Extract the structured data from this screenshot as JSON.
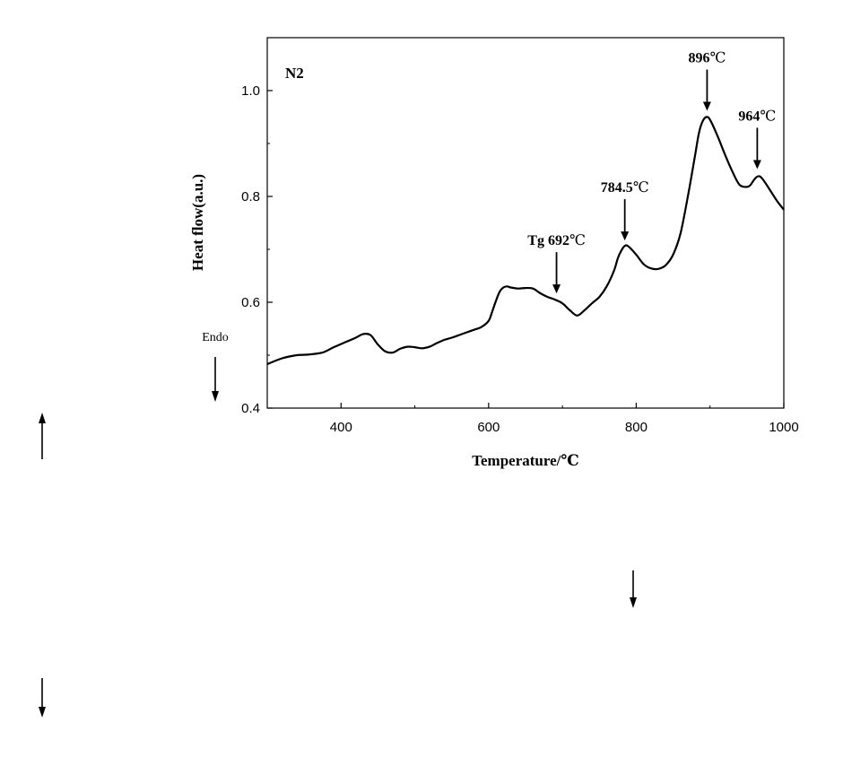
{
  "chart_data": {
    "type": "line",
    "panel_label": "N2",
    "xlabel": "Temperature/℃",
    "ylabel": "Heat flow(a.u.)",
    "xlim": [
      300,
      1000
    ],
    "ylim": [
      0.4,
      1.1
    ],
    "xticks": [
      {
        "value": 400,
        "label": "400"
      },
      {
        "value": 600,
        "label": "600"
      },
      {
        "value": 800,
        "label": "800"
      },
      {
        "value": 1000,
        "label": "1000"
      }
    ],
    "yticks": [
      {
        "value": 0.4,
        "label": "0.4"
      },
      {
        "value": 0.6,
        "label": "0.6"
      },
      {
        "value": 0.8,
        "label": "0.8"
      },
      {
        "value": 1.0,
        "label": "1.0"
      }
    ],
    "grid": false,
    "endo_label": "Endo",
    "series": [
      {
        "color": "#000000",
        "x": [
          300,
          320,
          340,
          355,
          375,
          390,
          405,
          420,
          430,
          440,
          450,
          460,
          470,
          480,
          490,
          500,
          510,
          520,
          530,
          540,
          550,
          560,
          570,
          580,
          590,
          600,
          605,
          610,
          615,
          620,
          625,
          630,
          640,
          650,
          660,
          670,
          680,
          690,
          700,
          710,
          720,
          730,
          740,
          750,
          760,
          770,
          775,
          780,
          785,
          790,
          800,
          810,
          820,
          830,
          840,
          850,
          860,
          870,
          880,
          885,
          890,
          895,
          900,
          910,
          920,
          930,
          940,
          950,
          955,
          960,
          965,
          970,
          980,
          990,
          1000
        ],
        "y": [
          0.483,
          0.494,
          0.5,
          0.501,
          0.505,
          0.515,
          0.524,
          0.533,
          0.54,
          0.538,
          0.52,
          0.507,
          0.505,
          0.512,
          0.516,
          0.515,
          0.513,
          0.516,
          0.523,
          0.529,
          0.533,
          0.538,
          0.543,
          0.548,
          0.553,
          0.565,
          0.583,
          0.603,
          0.62,
          0.628,
          0.63,
          0.628,
          0.626,
          0.627,
          0.626,
          0.617,
          0.61,
          0.605,
          0.598,
          0.585,
          0.575,
          0.585,
          0.598,
          0.61,
          0.63,
          0.66,
          0.683,
          0.698,
          0.707,
          0.705,
          0.69,
          0.672,
          0.664,
          0.663,
          0.67,
          0.69,
          0.73,
          0.8,
          0.88,
          0.92,
          0.942,
          0.95,
          0.945,
          0.915,
          0.88,
          0.848,
          0.822,
          0.818,
          0.822,
          0.832,
          0.838,
          0.835,
          0.815,
          0.793,
          0.775
        ]
      }
    ],
    "annotations": [
      {
        "x": 692,
        "y": 0.61,
        "bold": "Tg 692",
        "unit": "℃"
      },
      {
        "x": 784.5,
        "y": 0.71,
        "bold": "784.5",
        "unit": "℃"
      },
      {
        "x": 896,
        "y": 0.955,
        "bold": "896",
        "unit": "℃"
      },
      {
        "x": 964,
        "y": 0.845,
        "bold": "964",
        "unit": "℃"
      }
    ]
  }
}
